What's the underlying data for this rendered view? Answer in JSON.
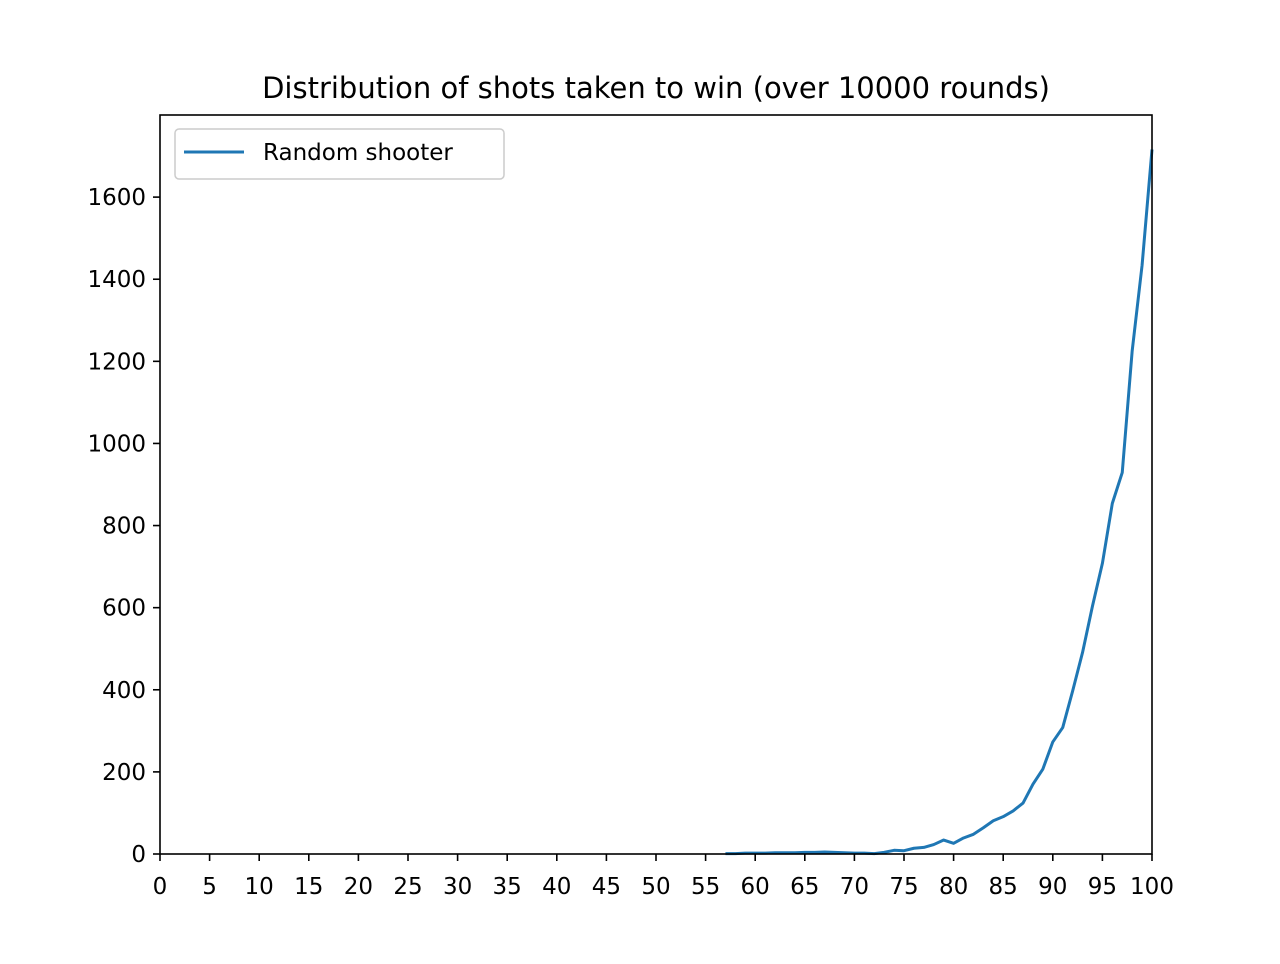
{
  "chart_data": {
    "type": "line",
    "title": "Distribution of shots taken to win (over 10000 rounds)",
    "xlabel": "",
    "ylabel": "",
    "xlim": [
      0,
      100
    ],
    "ylim": [
      0,
      1800
    ],
    "xticks": [
      0,
      5,
      10,
      15,
      20,
      25,
      30,
      35,
      40,
      45,
      50,
      55,
      60,
      65,
      70,
      75,
      80,
      85,
      90,
      95,
      100
    ],
    "xtick_labels": [
      "0",
      "5",
      "10",
      "15",
      "20",
      "25",
      "30",
      "35",
      "40",
      "45",
      "50",
      "55",
      "60",
      "65",
      "70",
      "75",
      "80",
      "85",
      "90",
      "95",
      "100"
    ],
    "yticks": [
      0,
      200,
      400,
      600,
      800,
      1000,
      1200,
      1400,
      1600
    ],
    "ytick_labels": [
      "0",
      "200",
      "400",
      "600",
      "800",
      "1000",
      "1200",
      "1400",
      "1600"
    ],
    "grid": false,
    "legend_position": "top-left",
    "series": [
      {
        "name": "Random shooter",
        "color": "#1f77b4",
        "x": [
          57,
          58,
          59,
          60,
          61,
          62,
          63,
          64,
          65,
          66,
          67,
          68,
          69,
          70,
          71,
          72,
          73,
          74,
          75,
          76,
          77,
          78,
          79,
          80,
          81,
          82,
          83,
          84,
          85,
          86,
          87,
          88,
          89,
          90,
          91,
          92,
          93,
          94,
          95,
          96,
          97,
          98,
          99,
          100
        ],
        "y": [
          1,
          1,
          2,
          2,
          2,
          3,
          3,
          3,
          4,
          4,
          5,
          4,
          3,
          2,
          2,
          1,
          4,
          9,
          8,
          14,
          16,
          23,
          34,
          26,
          39,
          48,
          64,
          81,
          91,
          105,
          124,
          170,
          207,
          273,
          308,
          397,
          491,
          604,
          708,
          854,
          929,
          1225,
          1434,
          1716
        ]
      }
    ]
  }
}
